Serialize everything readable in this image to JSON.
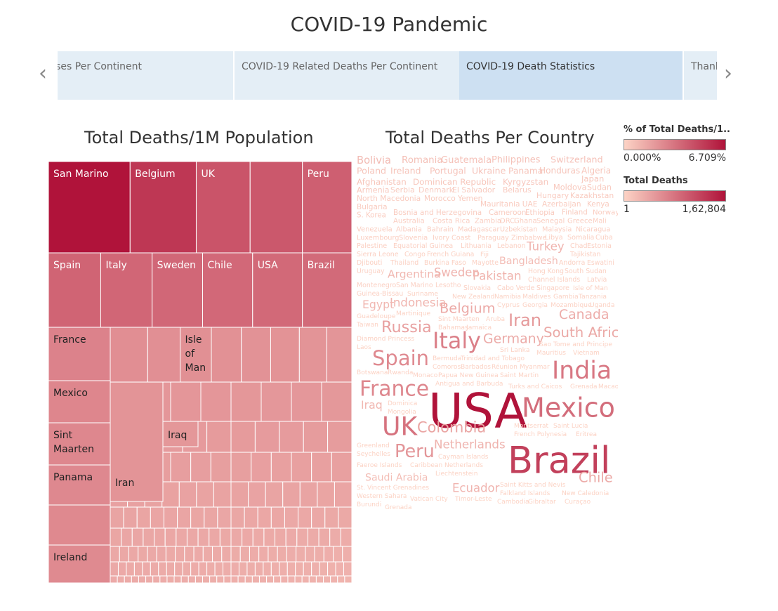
{
  "page": {
    "title": "COVID-19 Pandemic",
    "tabs": [
      {
        "label": "Cases Per Continent",
        "active": false
      },
      {
        "label": "COVID-19 Related Deaths Per Continent",
        "active": false
      },
      {
        "label": "COVID-19 Death Statistics",
        "active": true
      },
      {
        "label": "Thank You",
        "active": false
      }
    ],
    "nav": {
      "prev_icon": "chevron-left-icon",
      "next_icon": "chevron-right-icon",
      "prev_glyph": "‹",
      "next_glyph": "›"
    }
  },
  "legend": {
    "pct": {
      "title": "% of Total Deaths/1..",
      "min_label": "0.000%",
      "max_label": "6.709%",
      "color_low": "#fcd3c5",
      "color_high": "#b0133a"
    },
    "deaths": {
      "title": "Total Deaths",
      "min_label": "1",
      "max_label": "1,62,804",
      "color_low": "#fcd3c5",
      "color_high": "#b0133a"
    }
  },
  "chart_data": [
    {
      "type": "treemap",
      "title": "Total Deaths/1M Population",
      "color_low": "#fcd3c5",
      "color_high": "#b0133a",
      "rows": [
        {
          "share": 0.2167,
          "items": [
            {
              "label": "San Marino",
              "value": 1000
            },
            {
              "label": "Belgium",
              "value": 810
            },
            {
              "label": "UK",
              "value": 660
            },
            {
              "label": "",
              "value": 640
            },
            {
              "label": "Peru",
              "value": 605
            }
          ]
        },
        {
          "share": 0.1767,
          "items": [
            {
              "label": "Spain",
              "value": 580
            },
            {
              "label": "Italy",
              "value": 570
            },
            {
              "label": "Sweden",
              "value": 560
            },
            {
              "label": "Chile",
              "value": 555
            },
            {
              "label": "USA",
              "value": 552
            },
            {
              "label": "Brazil",
              "value": 548
            }
          ]
        }
      ],
      "small_labels": [
        "France",
        "Isle of Man",
        "Mexico",
        "Sint Maarten",
        "Iraq",
        "Panama",
        "Iran",
        "Ireland"
      ]
    },
    {
      "type": "wordcloud",
      "title": "Total Deaths Per Country",
      "color_low": "#fcd3c5",
      "color_high": "#b0133a",
      "words": [
        {
          "text": "USA",
          "value": 162804
        },
        {
          "text": "Brazil",
          "value": 99572
        },
        {
          "text": "Mexico",
          "value": 52006
        },
        {
          "text": "India",
          "value": 42518
        },
        {
          "text": "UK",
          "value": 46566
        },
        {
          "text": "Italy",
          "value": 35190
        },
        {
          "text": "France",
          "value": 30312
        },
        {
          "text": "Spain",
          "value": 28503
        },
        {
          "text": "Peru",
          "value": 20844
        },
        {
          "text": "Iran",
          "value": 18132
        },
        {
          "text": "Russia",
          "value": 14725
        },
        {
          "text": "Colombia",
          "value": 12250
        },
        {
          "text": "South Africa",
          "value": 10408
        },
        {
          "text": "Chile",
          "value": 10011
        },
        {
          "text": "Belgium",
          "value": 9859
        },
        {
          "text": "Germany",
          "value": 9211
        },
        {
          "text": "Canada",
          "value": 8958
        },
        {
          "text": "Indonesia",
          "value": 5968
        },
        {
          "text": "Netherlands",
          "value": 6159
        },
        {
          "text": "Pakistan",
          "value": 6035
        },
        {
          "text": "Sweden",
          "value": 5766
        },
        {
          "text": "Turkey",
          "value": 5813
        },
        {
          "text": "Ecuador",
          "value": 5847
        },
        {
          "text": "Egypt",
          "value": 4912
        },
        {
          "text": "Argentina",
          "value": 4606
        },
        {
          "text": "Iraq",
          "value": 4899
        },
        {
          "text": "Bangladesh",
          "value": 3365
        },
        {
          "text": "Saudi Arabia",
          "value": 3130
        },
        {
          "text": "Bolivia",
          "value": 3721
        },
        {
          "text": "Philippines",
          "value": 2023
        },
        {
          "text": "Romania",
          "value": 2458
        },
        {
          "text": "Ireland",
          "value": 1772
        },
        {
          "text": "Poland",
          "value": 1787
        },
        {
          "text": "Ukraine",
          "value": 1720
        },
        {
          "text": "Guatemala",
          "value": 2197
        },
        {
          "text": "Honduras",
          "value": 1384
        },
        {
          "text": "Afghanistan",
          "value": 1288
        },
        {
          "text": "Kyrgyzstan",
          "value": 1232
        },
        {
          "text": "Japan",
          "value": 1033
        },
        {
          "text": "Panama",
          "value": 1591
        },
        {
          "text": "Dominican Republic",
          "value": 1286
        },
        {
          "text": "Portugal",
          "value": 1748
        },
        {
          "text": "Algeria",
          "value": 1302
        },
        {
          "text": "Switzerland",
          "value": 1986
        },
        {
          "text": "Bahrain",
          "value": 165
        },
        {
          "text": "Norway",
          "value": 256
        },
        {
          "text": "Latvia",
          "value": 32
        },
        {
          "text": "Estonia",
          "value": 63
        },
        {
          "text": "Djibouti",
          "value": 58
        },
        {
          "text": "Monaco",
          "value": 4
        },
        {
          "text": "Aruba",
          "value": 3
        },
        {
          "text": "Georgia",
          "value": 17
        },
        {
          "text": "Lesotho",
          "value": 31
        },
        {
          "text": "S. Korea",
          "value": 304
        },
        {
          "text": "Armenia",
          "value": 772
        },
        {
          "text": "Ethiopia",
          "value": 365
        },
        {
          "text": "Slovakia",
          "value": 29
        },
        {
          "text": "Grenada",
          "value": 1
        },
        {
          "text": "Jamaica",
          "value": 12
        },
        {
          "text": "Hungary",
          "value": 596
        },
        {
          "text": "Morocco",
          "value": 533
        },
        {
          "text": "Comoros",
          "value": 7
        },
        {
          "text": "Mayotte",
          "value": 40
        },
        {
          "text": "Denmark",
          "value": 617
        },
        {
          "text": "Macao",
          "value": 1
        },
        {
          "text": "Lithuania",
          "value": 81
        },
        {
          "text": "Barbados",
          "value": 7
        },
        {
          "text": "Mauritius",
          "value": 10
        },
        {
          "text": "Sri Lanka",
          "value": 11
        },
        {
          "text": "Dominica",
          "value": 1
        },
        {
          "text": "Paraguay",
          "value": 108
        },
        {
          "text": "Mongolia",
          "value": 1
        },
        {
          "text": "Azerbaijan",
          "value": 442
        },
        {
          "text": "Myanmar",
          "value": 6
        },
        {
          "text": "Isle of Man",
          "value": 24
        },
        {
          "text": "Cameroon",
          "value": 401
        },
        {
          "text": "Venezuela",
          "value": 208
        },
        {
          "text": "El Salvador",
          "value": 616
        },
        {
          "text": "Ivory Coast",
          "value": 111
        },
        {
          "text": "Montserrat",
          "value": 1
        },
        {
          "text": "Saint Lucia",
          "value": 1
        },
        {
          "text": "Mauritania UAE",
          "value": 488
        },
        {
          "text": "Kazakhstan",
          "value": 585
        },
        {
          "text": "Cabo Verde",
          "value": 27
        },
        {
          "text": "Luxembourg",
          "value": 120
        },
        {
          "text": "Zambia",
          "value": 241
        },
        {
          "text": "Madagascar",
          "value": 145
        },
        {
          "text": "Congo",
          "value": 60
        },
        {
          "text": "South Sudan",
          "value": 47
        },
        {
          "text": "Sierra Leone",
          "value": 68
        },
        {
          "text": "French Guiana",
          "value": 60
        },
        {
          "text": "Burkina Faso",
          "value": 53
        },
        {
          "text": "French Polynesia",
          "value": 1
        },
        {
          "text": "Cayman Islands",
          "value": 1
        },
        {
          "text": "Eritrea",
          "value": 1
        },
        {
          "text": "Faeroe Islands",
          "value": 1
        },
        {
          "text": "Mali",
          "value": 124
        },
        {
          "text": "Turks and Caicos",
          "value": 2
        },
        {
          "text": "Thailand",
          "value": 58
        },
        {
          "text": "Equatorial Guinea",
          "value": 83
        },
        {
          "text": "Costa Rica",
          "value": 263
        },
        {
          "text": "DRC",
          "value": 234
        },
        {
          "text": "Trinidad and Tobago",
          "value": 8
        },
        {
          "text": "Sao Tome and Principe",
          "value": 15
        },
        {
          "text": "Antigua and Barbuda",
          "value": 3
        },
        {
          "text": "Ghana",
          "value": 224
        },
        {
          "text": "Caribbean Netherlands",
          "value": 1
        },
        {
          "text": "Liechtenstein",
          "value": 1
        },
        {
          "text": "Libya",
          "value": 97
        },
        {
          "text": "Finland",
          "value": 331
        },
        {
          "text": "Cuba",
          "value": 87
        },
        {
          "text": "Yemen",
          "value": 520
        },
        {
          "text": "Greece",
          "value": 211
        },
        {
          "text": "Fiji",
          "value": 1
        },
        {
          "text": "Eswatini",
          "value": 41
        },
        {
          "text": "Zimbabwe",
          "value": 104
        },
        {
          "text": "Andorra",
          "value": 52
        },
        {
          "text": "Greenland",
          "value": 1
        },
        {
          "text": "Papua New Guinea",
          "value": 4
        },
        {
          "text": "Bosnia and Herzegovina",
          "value": 409
        },
        {
          "text": "Saint Kitts and Nevis",
          "value": 1
        },
        {
          "text": "St. Vincent Grenadines",
          "value": 1
        },
        {
          "text": "Falkland Islands",
          "value": 1
        },
        {
          "text": "Belarus",
          "value": 598
        },
        {
          "text": "Cyprus",
          "value": 19
        },
        {
          "text": "Diamond Princess",
          "value": 13
        },
        {
          "text": "Tajikistan",
          "value": 60
        },
        {
          "text": "New Caledonia",
          "value": 1
        },
        {
          "text": "North Macedonia",
          "value": 540
        },
        {
          "text": "Western Sahara",
          "value": 1
        },
        {
          "text": "Channel Islands",
          "value": 48
        },
        {
          "text": "Mozambique",
          "value": 17
        },
        {
          "text": "Saint Martin",
          "value": 3
        },
        {
          "text": "Taiwan",
          "value": 7
        },
        {
          "text": "Guinea-Bissau",
          "value": 25
        },
        {
          "text": "Sint Maarten",
          "value": 15
        },
        {
          "text": "Montenegro",
          "value": 42
        },
        {
          "text": "Chad",
          "value": 75
        },
        {
          "text": "Vatican City",
          "value": 1
        },
        {
          "text": "New Zealand",
          "value": 22
        },
        {
          "text": "Guadeloupe",
          "value": 14
        },
        {
          "text": "Lebanon",
          "value": 76
        },
        {
          "text": "San Marino",
          "value": 42
        },
        {
          "text": "Timor-Leste",
          "value": 1
        },
        {
          "text": "Uzbekistan",
          "value": 140
        },
        {
          "text": "Martinique",
          "value": 16
        },
        {
          "text": "Serbia",
          "value": 643
        },
        {
          "text": "Hong Kong",
          "value": 50
        },
        {
          "text": "Seychelles",
          "value": 1
        },
        {
          "text": "Nicaragua",
          "value": 123
        },
        {
          "text": "Botswana",
          "value": 6
        },
        {
          "text": "Suriname",
          "value": 24
        },
        {
          "text": "Cambodia",
          "value": 1
        },
        {
          "text": "Gibraltar",
          "value": 1
        },
        {
          "text": "Bermuda",
          "value": 9
        },
        {
          "text": "Bahamas",
          "value": 14
        },
        {
          "text": "Uruguay",
          "value": 37
        },
        {
          "text": "Palestine",
          "value": 89
        },
        {
          "text": "Australia",
          "value": 278
        },
        {
          "text": "Malaysia",
          "value": 125
        },
        {
          "text": "Tanzania",
          "value": 21
        },
        {
          "text": "Moldova",
          "value": 893
        },
        {
          "text": "Réunion",
          "value": 7
        },
        {
          "text": "Rwanda",
          "value": 5
        },
        {
          "text": "Namibia",
          "value": 22
        },
        {
          "text": "Maldives",
          "value": 22
        },
        {
          "text": "Slovenia",
          "value": 118
        },
        {
          "text": "Bulgaria",
          "value": 423
        },
        {
          "text": "Vietnam",
          "value": 10
        },
        {
          "text": "Somalia",
          "value": 93
        },
        {
          "text": "Gambia",
          "value": 22
        },
        {
          "text": "Curaçao",
          "value": 1
        },
        {
          "text": "Senegal",
          "value": 216
        },
        {
          "text": "Sudan",
          "value": 770
        },
        {
          "text": "Burundi",
          "value": 1
        },
        {
          "text": "Kenya",
          "value": 405
        },
        {
          "text": "Uganda",
          "value": 15
        },
        {
          "text": "Laos",
          "value": 1
        },
        {
          "text": "Albania",
          "value": 193
        },
        {
          "text": "Singapore",
          "value": 27
        },
        {
          "text": "Grenada",
          "value": 1
        }
      ]
    }
  ]
}
